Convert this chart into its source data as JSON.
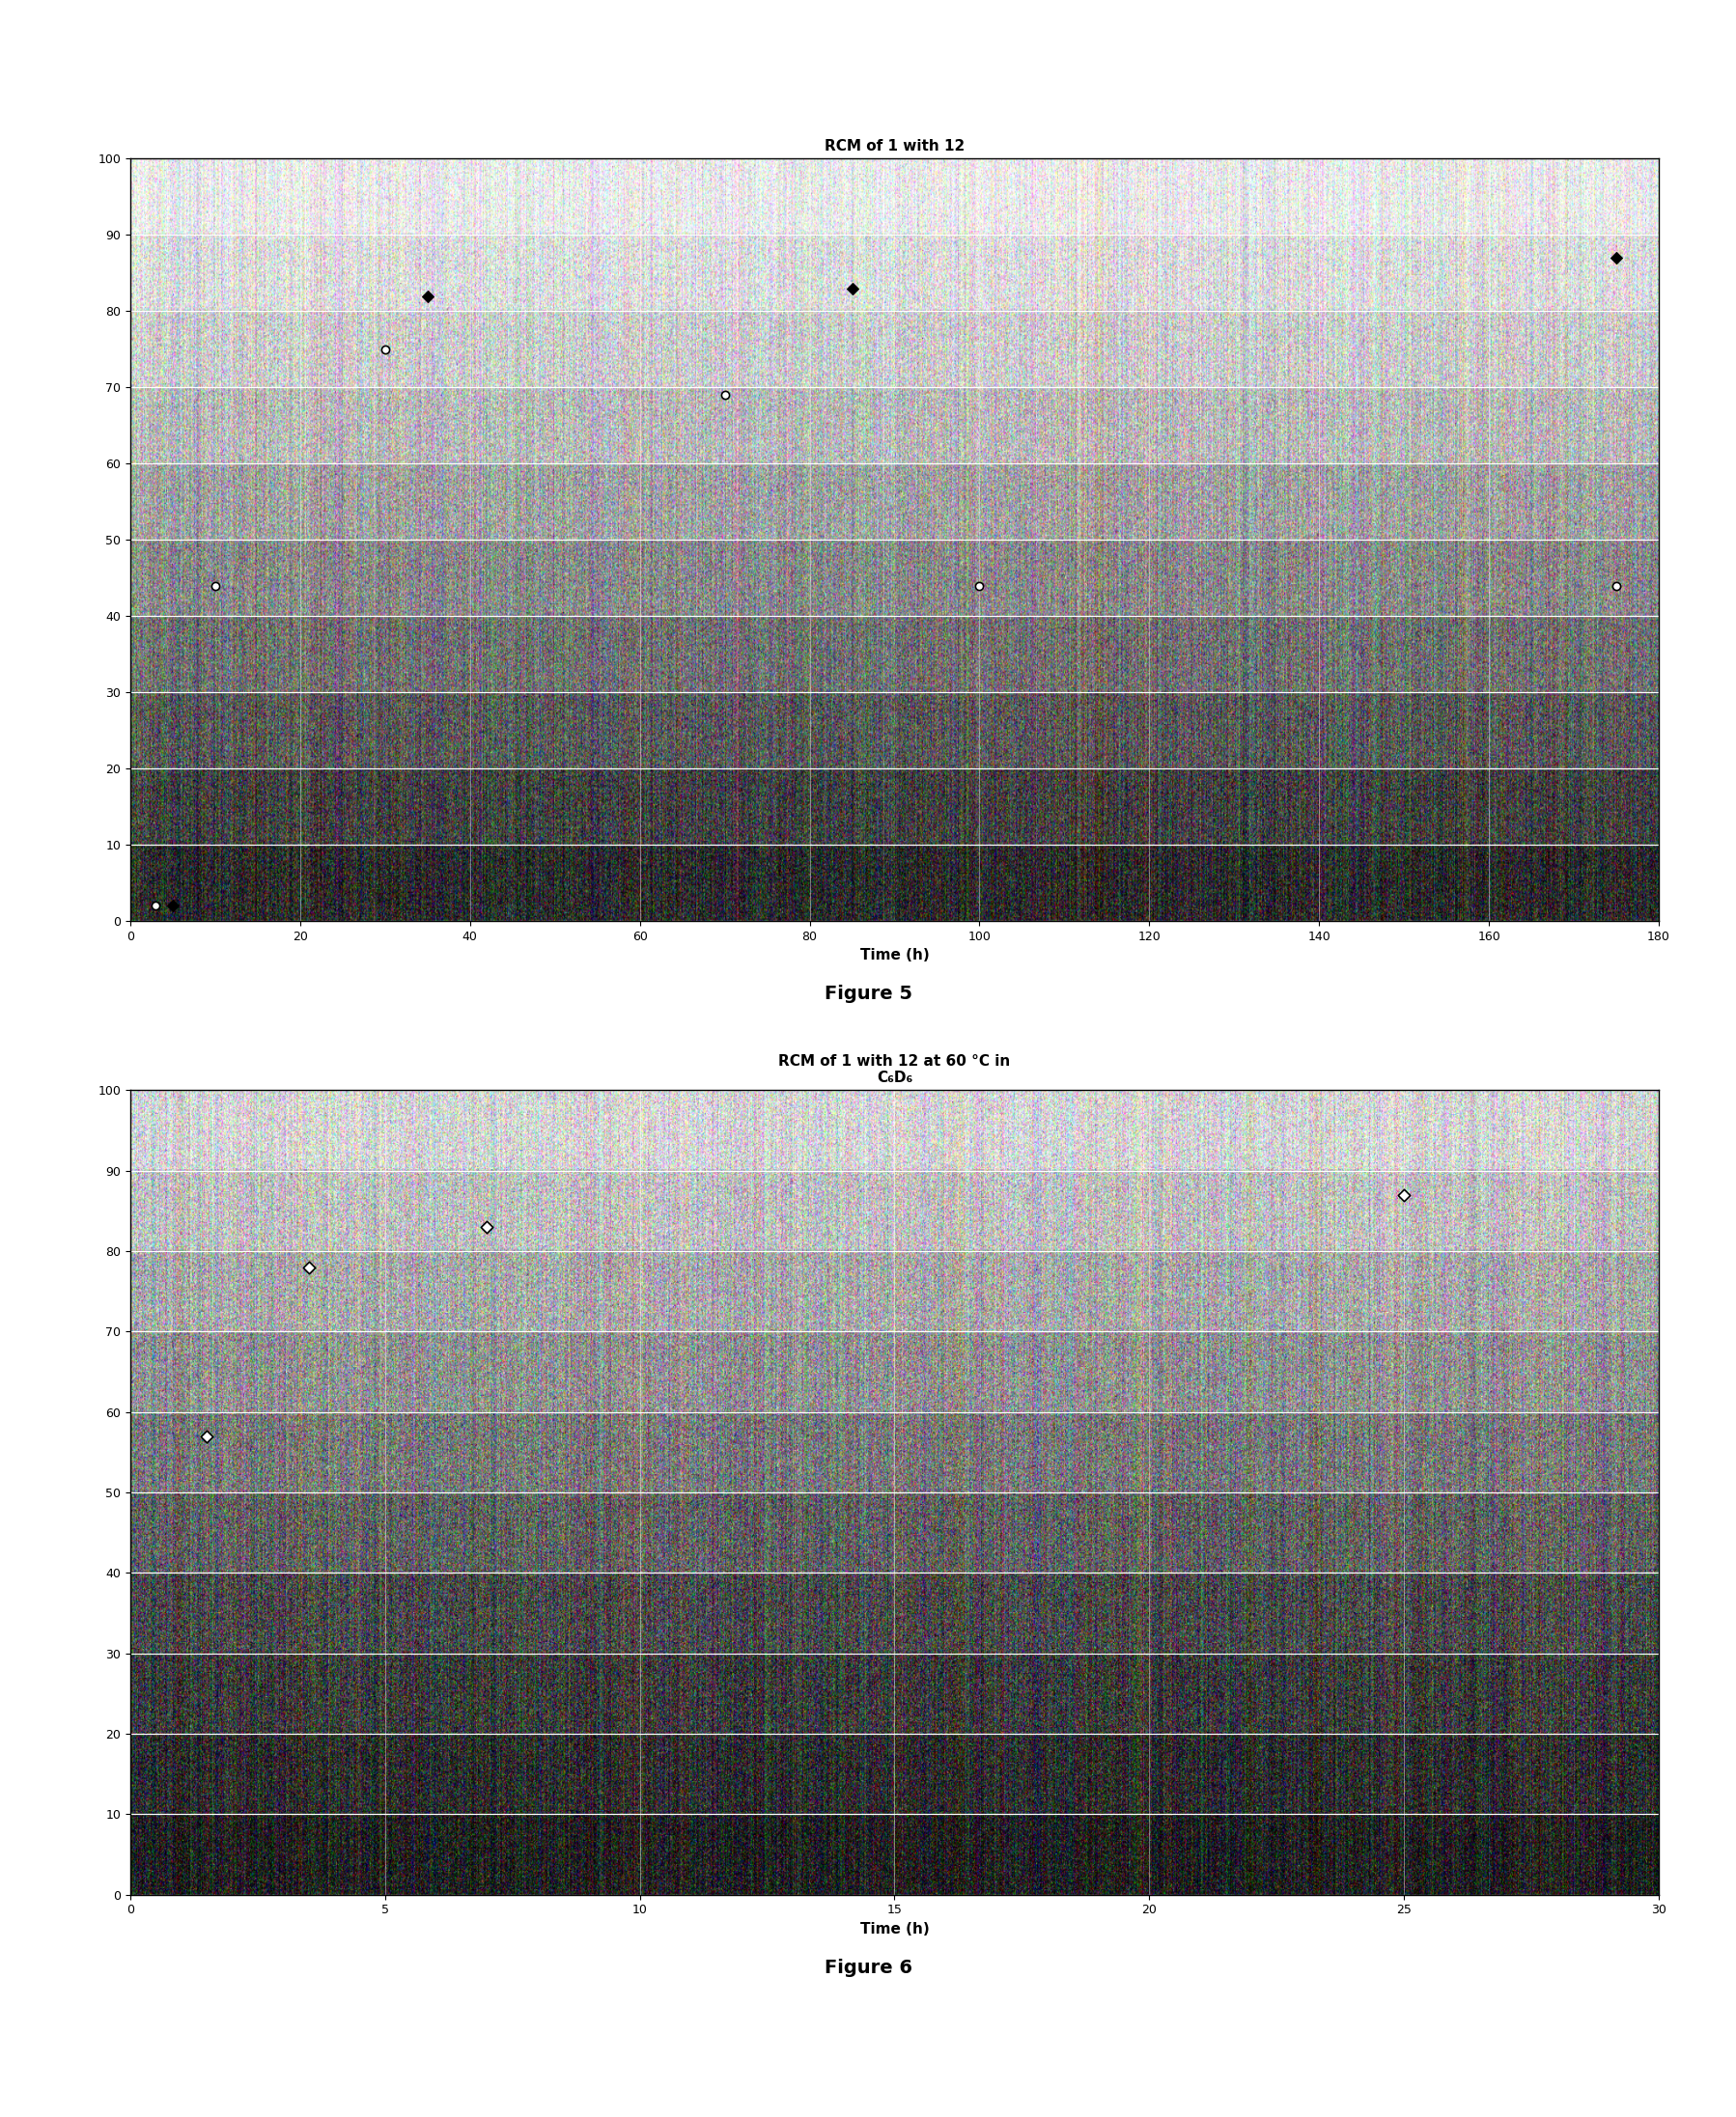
{
  "fig1": {
    "title": "RCM of 1 with 12",
    "xlabel": "Time (h)",
    "xlim": [
      0,
      180
    ],
    "ylim": [
      0,
      100
    ],
    "xticks": [
      0,
      20,
      40,
      60,
      80,
      100,
      120,
      140,
      160,
      180
    ],
    "yticks": [
      0,
      10,
      20,
      30,
      40,
      50,
      60,
      70,
      80,
      90,
      100
    ],
    "scatter1_x": [
      3,
      10,
      30,
      70,
      100,
      175
    ],
    "scatter1_y": [
      2,
      44,
      75,
      69,
      44,
      44
    ],
    "scatter2_x": [
      5,
      35,
      85,
      175
    ],
    "scatter2_y": [
      2,
      82,
      83,
      87
    ],
    "band_colors": [
      "#f5f5f5",
      "#e0e0e0",
      "#cccccc",
      "#b8b8b8",
      "#a0a0a0",
      "#888888",
      "#707070",
      "#585858",
      "#404040",
      "#282828"
    ],
    "noise_std": 40
  },
  "fig2": {
    "title1": "RCM of 1 with 12 at 60 °C in",
    "title2": "C₆D₆",
    "xlabel": "Time (h)",
    "xlim": [
      0,
      30
    ],
    "ylim": [
      0,
      100
    ],
    "xticks": [
      0,
      5,
      10,
      15,
      20,
      25,
      30
    ],
    "yticks": [
      0,
      10,
      20,
      30,
      40,
      50,
      60,
      70,
      80,
      90,
      100
    ],
    "scatter_x": [
      1.5,
      3.5,
      7,
      25
    ],
    "scatter_y": [
      57,
      78,
      83,
      87
    ],
    "band_colors": [
      "#d8d8d8",
      "#c0c0c0",
      "#a8a8a8",
      "#909090",
      "#787878",
      "#606060",
      "#484848",
      "#383838",
      "#282828",
      "#181818"
    ],
    "noise_std": 45
  },
  "figure5_label": "Figure 5",
  "figure6_label": "Figure 6"
}
